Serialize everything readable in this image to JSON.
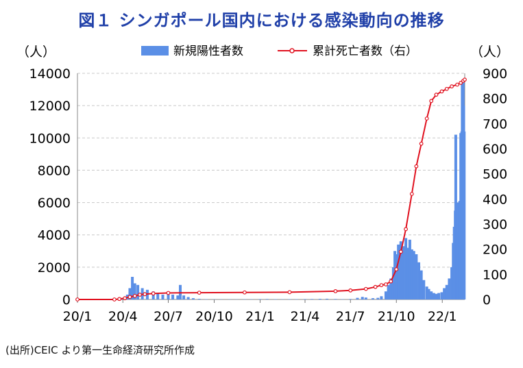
{
  "header": {
    "title": "図１ シンガポール国内における感染動向の推移"
  },
  "footer": {
    "source": "(出所)CEIC より第一生命経済研究所作成"
  },
  "chart_data": {
    "type": "bar+line",
    "left_unit": "（人）",
    "right_unit": "（人）",
    "legend": {
      "bar_label": "新規陽性者数",
      "line_label": "累計死亡者数（右）",
      "placement": "top-center"
    },
    "colors": {
      "bar": "#5b8fe6",
      "line": "#e0101e",
      "grid": "#c8c8c8"
    },
    "grid": true,
    "x_range": [
      "2020-01-01",
      "2022-02-15"
    ],
    "x_ticks": [
      {
        "date": "2020-01-01",
        "label": "20/1"
      },
      {
        "date": "2020-04-01",
        "label": "20/4"
      },
      {
        "date": "2020-07-01",
        "label": "20/7"
      },
      {
        "date": "2020-10-01",
        "label": "20/10"
      },
      {
        "date": "2021-01-01",
        "label": "21/1"
      },
      {
        "date": "2021-04-01",
        "label": "21/4"
      },
      {
        "date": "2021-07-01",
        "label": "21/7"
      },
      {
        "date": "2021-10-01",
        "label": "21/10"
      },
      {
        "date": "2022-01-01",
        "label": "22/1"
      }
    ],
    "y_left": {
      "min": 0,
      "max": 14000,
      "ticks": [
        0,
        2000,
        4000,
        6000,
        8000,
        10000,
        12000,
        14000
      ]
    },
    "y_right": {
      "min": 0,
      "max": 900,
      "ticks": [
        0,
        100,
        200,
        300,
        400,
        500,
        600,
        700,
        800,
        900
      ]
    },
    "series": [
      {
        "name": "新規陽性者数",
        "axis": "left",
        "kind": "bar",
        "points": [
          [
            "2020-01-15",
            5
          ],
          [
            "2020-02-01",
            15
          ],
          [
            "2020-02-15",
            10
          ],
          [
            "2020-03-01",
            15
          ],
          [
            "2020-03-15",
            40
          ],
          [
            "2020-04-01",
            80
          ],
          [
            "2020-04-10",
            300
          ],
          [
            "2020-04-15",
            700
          ],
          [
            "2020-04-20",
            1400
          ],
          [
            "2020-04-25",
            1000
          ],
          [
            "2020-05-01",
            900
          ],
          [
            "2020-05-10",
            700
          ],
          [
            "2020-05-20",
            600
          ],
          [
            "2020-06-01",
            500
          ],
          [
            "2020-06-10",
            400
          ],
          [
            "2020-06-20",
            300
          ],
          [
            "2020-07-01",
            350
          ],
          [
            "2020-07-10",
            300
          ],
          [
            "2020-07-20",
            250
          ],
          [
            "2020-07-25",
            900
          ],
          [
            "2020-08-01",
            250
          ],
          [
            "2020-08-10",
            150
          ],
          [
            "2020-08-20",
            80
          ],
          [
            "2020-09-01",
            40
          ],
          [
            "2020-09-15",
            20
          ],
          [
            "2020-10-01",
            10
          ],
          [
            "2020-10-15",
            10
          ],
          [
            "2020-11-01",
            10
          ],
          [
            "2020-11-15",
            10
          ],
          [
            "2020-12-01",
            15
          ],
          [
            "2020-12-15",
            15
          ],
          [
            "2021-01-01",
            25
          ],
          [
            "2021-01-15",
            30
          ],
          [
            "2021-02-01",
            20
          ],
          [
            "2021-02-15",
            15
          ],
          [
            "2021-03-01",
            20
          ],
          [
            "2021-03-15",
            20
          ],
          [
            "2021-04-01",
            25
          ],
          [
            "2021-04-15",
            30
          ],
          [
            "2021-05-01",
            40
          ],
          [
            "2021-05-15",
            45
          ],
          [
            "2021-06-01",
            30
          ],
          [
            "2021-06-15",
            20
          ],
          [
            "2021-07-01",
            30
          ],
          [
            "2021-07-15",
            100
          ],
          [
            "2021-07-25",
            160
          ],
          [
            "2021-08-01",
            120
          ],
          [
            "2021-08-15",
            80
          ],
          [
            "2021-08-25",
            100
          ],
          [
            "2021-09-01",
            200
          ],
          [
            "2021-09-10",
            500
          ],
          [
            "2021-09-15",
            900
          ],
          [
            "2021-09-20",
            1300
          ],
          [
            "2021-09-25",
            2000
          ],
          [
            "2021-09-28",
            3000
          ],
          [
            "2021-10-01",
            2800
          ],
          [
            "2021-10-05",
            3400
          ],
          [
            "2021-10-10",
            3600
          ],
          [
            "2021-10-15",
            3300
          ],
          [
            "2021-10-20",
            3800
          ],
          [
            "2021-10-25",
            3200
          ],
          [
            "2021-10-28",
            3700
          ],
          [
            "2021-11-01",
            3100
          ],
          [
            "2021-11-05",
            3000
          ],
          [
            "2021-11-10",
            2800
          ],
          [
            "2021-11-15",
            2300
          ],
          [
            "2021-11-20",
            1800
          ],
          [
            "2021-11-25",
            1200
          ],
          [
            "2021-12-01",
            800
          ],
          [
            "2021-12-05",
            650
          ],
          [
            "2021-12-10",
            500
          ],
          [
            "2021-12-15",
            400
          ],
          [
            "2021-12-20",
            350
          ],
          [
            "2021-12-25",
            400
          ],
          [
            "2021-12-31",
            450
          ],
          [
            "2022-01-05",
            700
          ],
          [
            "2022-01-10",
            900
          ],
          [
            "2022-01-15",
            1300
          ],
          [
            "2022-01-20",
            2000
          ],
          [
            "2022-01-23",
            3500
          ],
          [
            "2022-01-25",
            4500
          ],
          [
            "2022-01-27",
            5500
          ],
          [
            "2022-01-28",
            10200
          ],
          [
            "2022-01-30",
            5500
          ],
          [
            "2022-02-01",
            6000
          ],
          [
            "2022-02-03",
            4200
          ],
          [
            "2022-02-05",
            6100
          ],
          [
            "2022-02-07",
            10300
          ],
          [
            "2022-02-09",
            10400
          ],
          [
            "2022-02-10",
            13400
          ],
          [
            "2022-02-11",
            11500
          ],
          [
            "2022-02-12",
            13600
          ],
          [
            "2022-02-13",
            12000
          ],
          [
            "2022-02-14",
            10400
          ]
        ]
      },
      {
        "name": "累計死亡者数（右）",
        "axis": "right",
        "kind": "line",
        "points": [
          [
            "2020-01-01",
            0
          ],
          [
            "2020-03-15",
            0
          ],
          [
            "2020-03-25",
            2
          ],
          [
            "2020-04-05",
            5
          ],
          [
            "2020-04-15",
            10
          ],
          [
            "2020-04-25",
            14
          ],
          [
            "2020-05-05",
            19
          ],
          [
            "2020-05-15",
            21
          ],
          [
            "2020-06-01",
            24
          ],
          [
            "2020-07-01",
            26
          ],
          [
            "2020-09-01",
            27
          ],
          [
            "2020-12-01",
            28
          ],
          [
            "2021-03-01",
            29
          ],
          [
            "2021-06-01",
            33
          ],
          [
            "2021-07-01",
            36
          ],
          [
            "2021-08-01",
            42
          ],
          [
            "2021-08-20",
            50
          ],
          [
            "2021-09-01",
            57
          ],
          [
            "2021-09-10",
            60
          ],
          [
            "2021-09-20",
            72
          ],
          [
            "2021-10-01",
            120
          ],
          [
            "2021-10-10",
            190
          ],
          [
            "2021-10-20",
            280
          ],
          [
            "2021-11-01",
            420
          ],
          [
            "2021-11-10",
            530
          ],
          [
            "2021-11-20",
            620
          ],
          [
            "2021-12-01",
            720
          ],
          [
            "2021-12-10",
            790
          ],
          [
            "2021-12-20",
            815
          ],
          [
            "2021-12-31",
            828
          ],
          [
            "2022-01-10",
            838
          ],
          [
            "2022-01-20",
            848
          ],
          [
            "2022-01-31",
            855
          ],
          [
            "2022-02-07",
            862
          ],
          [
            "2022-02-12",
            870
          ],
          [
            "2022-02-15",
            875
          ]
        ]
      }
    ]
  }
}
